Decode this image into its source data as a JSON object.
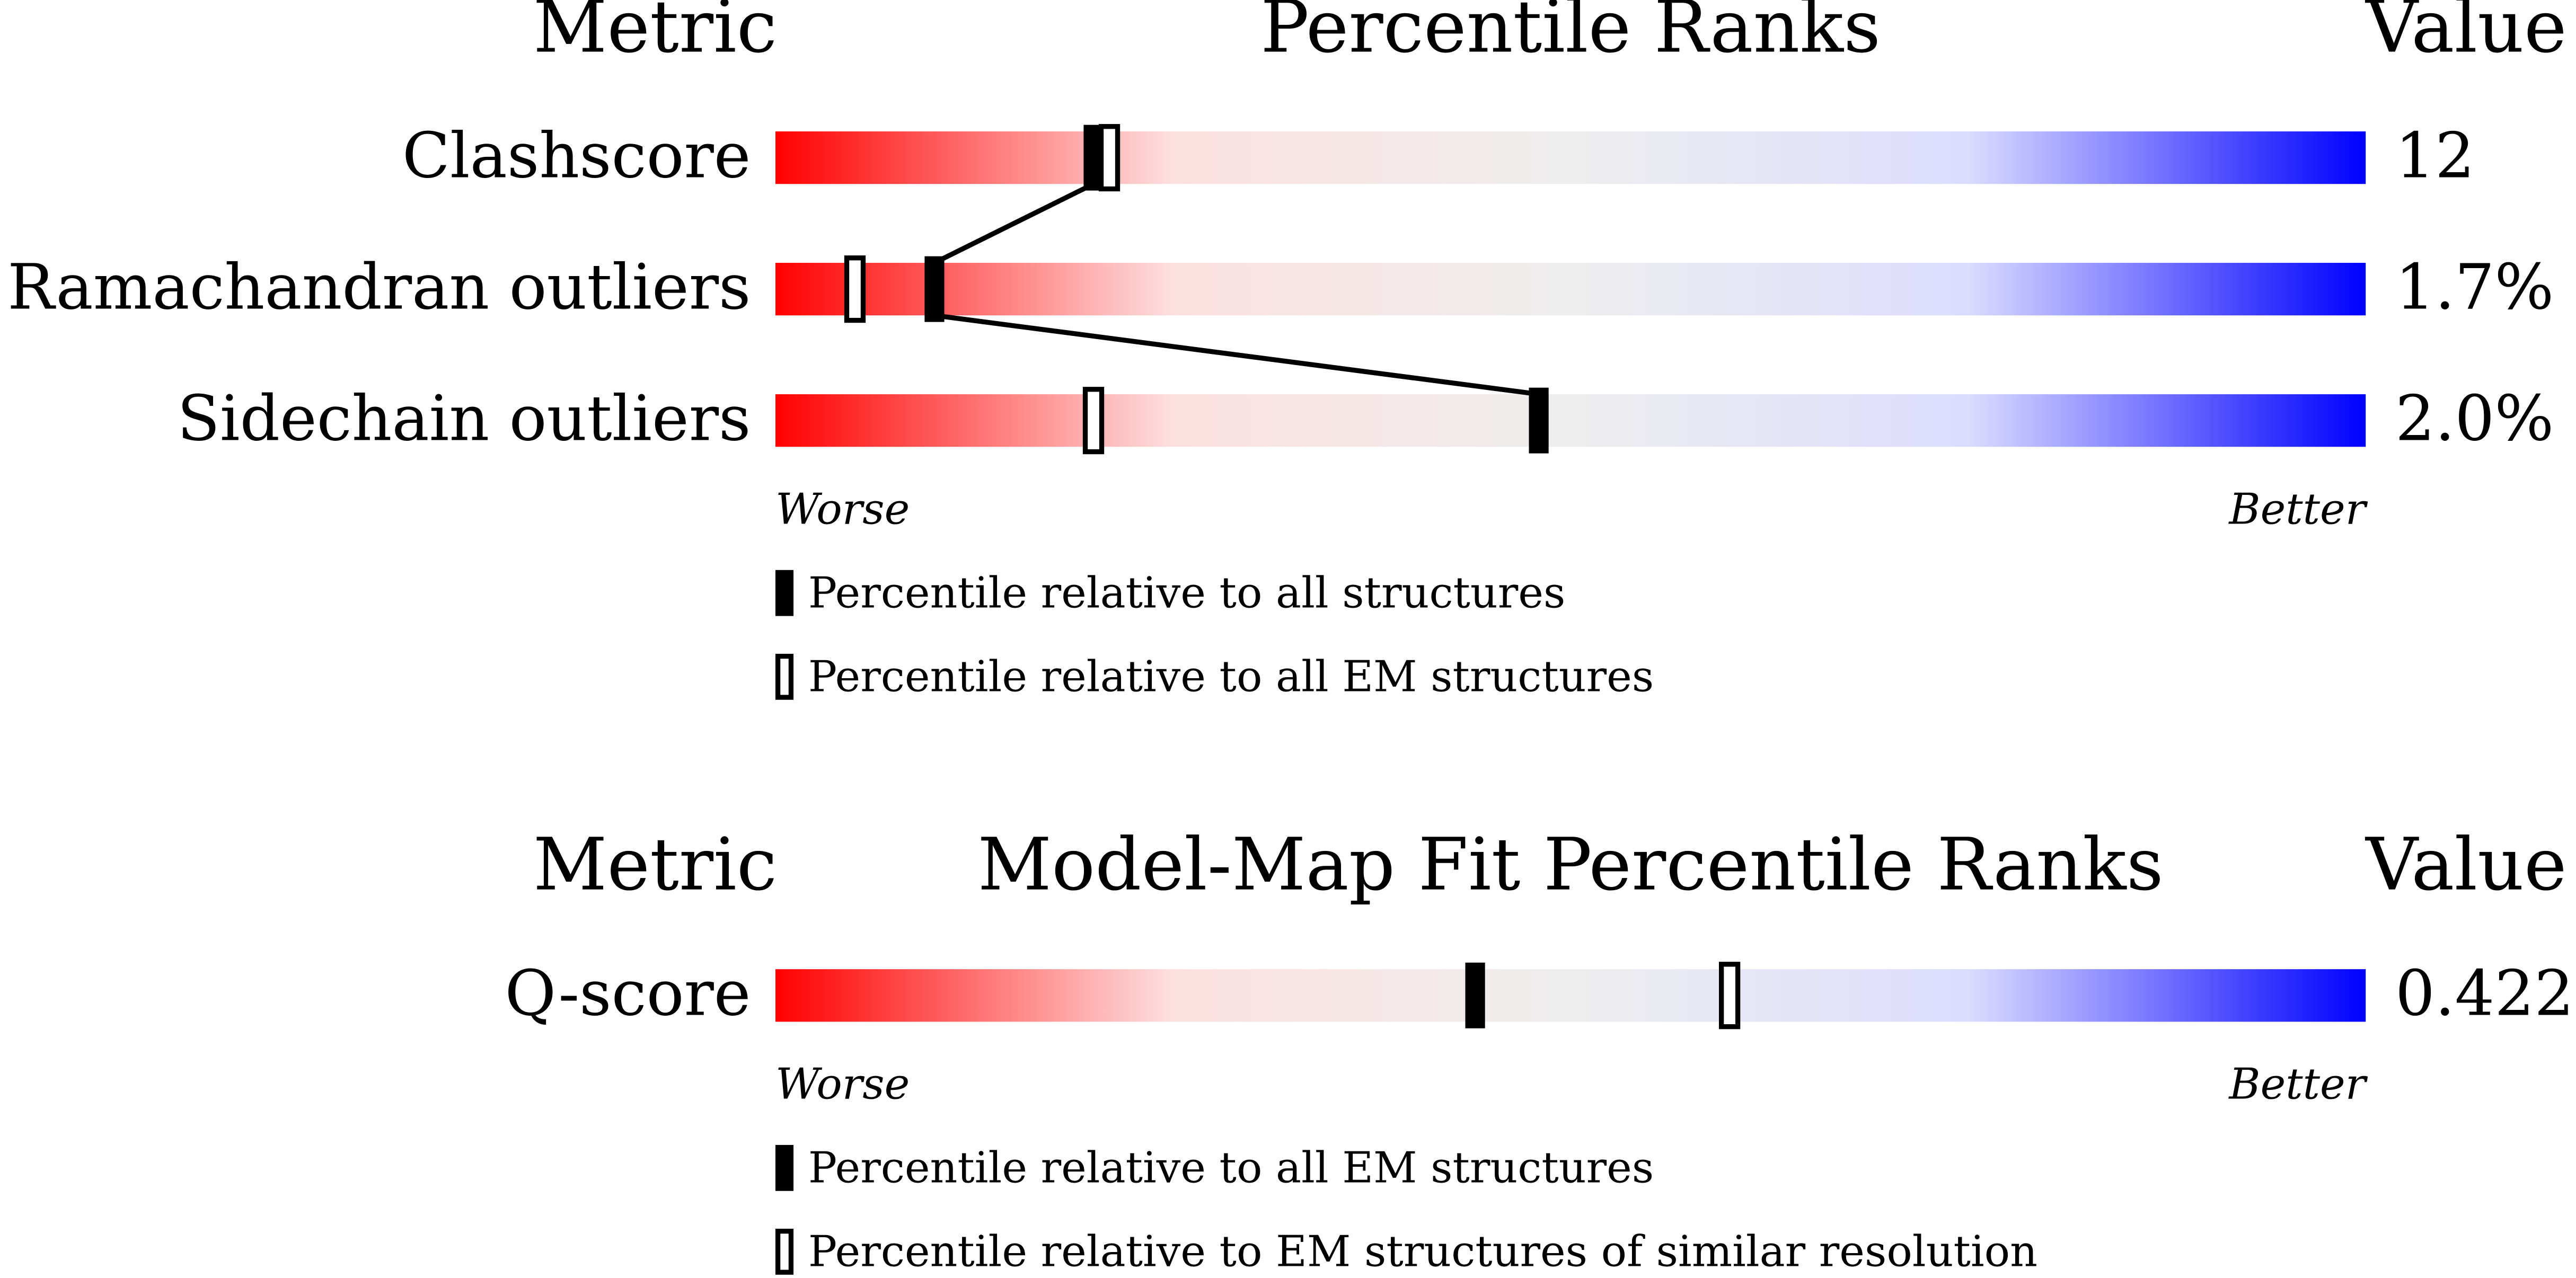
{
  "chart_data": [
    {
      "type": "percentile_slider",
      "header_metric": "Metric",
      "title": "Percentile Ranks",
      "header_value": "Value",
      "categories": [
        "Clashscore",
        "Ramachandran outliers",
        "Sidechain outliers"
      ],
      "metric_values": [
        "12",
        "1.7%",
        "2.0%"
      ],
      "series": [
        {
          "name": "Percentile relative to all structures",
          "style": "filled",
          "color": "#000000",
          "values": [
            20,
            10,
            48
          ]
        },
        {
          "name": "Percentile relative to all EM structures",
          "style": "open",
          "color": "#000000",
          "values": [
            21,
            5,
            20
          ]
        }
      ],
      "xlim": [
        0,
        100
      ],
      "axis_low_label": "Worse",
      "axis_high_label": "Better",
      "gradient": [
        "#ff0000",
        "#fde0e0",
        "#eeeeee",
        "#dcdcff",
        "#0000ff"
      ]
    },
    {
      "type": "percentile_slider",
      "header_metric": "Metric",
      "title": "Model-Map Fit Percentile Ranks",
      "header_value": "Value",
      "categories": [
        "Q-score"
      ],
      "metric_values": [
        "0.422"
      ],
      "series": [
        {
          "name": "Percentile relative to all EM structures",
          "style": "filled",
          "color": "#000000",
          "values": [
            44
          ]
        },
        {
          "name": "Percentile relative to EM structures of similar resolution",
          "style": "open",
          "color": "#000000",
          "values": [
            60
          ]
        }
      ],
      "xlim": [
        0,
        100
      ],
      "axis_low_label": "Worse",
      "axis_high_label": "Better",
      "gradient": [
        "#ff0000",
        "#fde0e0",
        "#eeeeee",
        "#dcdcff",
        "#0000ff"
      ]
    }
  ]
}
